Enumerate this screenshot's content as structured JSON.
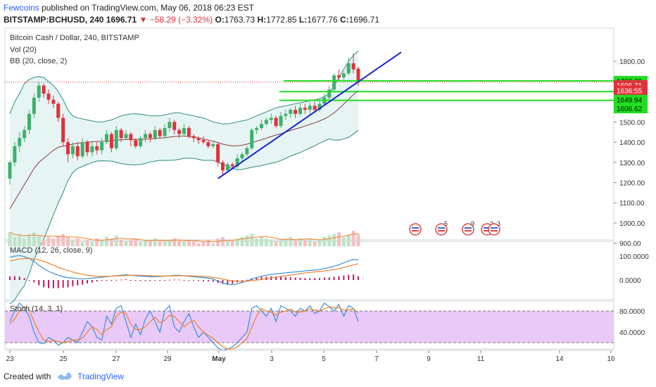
{
  "header": {
    "author": "Fewcoins",
    "published": " published on TradingView.com, May 06, 2018 06:23 EST",
    "symbol": "BITSTAMP:BCHUSD, 240",
    "price": " 1696.71 ",
    "change": "▼ −58.29 (−3.32%)",
    "ohlc_o_label": " O:",
    "ohlc_o": "1763.73",
    "ohlc_h_label": " H:",
    "ohlc_h": "1772.85",
    "ohlc_l_label": " L:",
    "ohlc_l": "1677.76",
    "ohlc_c_label": " C:",
    "ohlc_c": "1696.71"
  },
  "legend": {
    "title": "Bitcoin Cash / Dollar, 240, BITSTAMP",
    "vol": "Vol (20)",
    "bb": "BB (20, close, 2)",
    "macd": "MACD (12, 26, close, 9)",
    "stoch": "Stoch (14, 3, 1)"
  },
  "footer": {
    "created_with": "Created with",
    "brand": "TradingView"
  },
  "colors": {
    "up": "#3db16b",
    "down": "#e0323a",
    "bb_fill": "#e6f4f4",
    "bb_line": "#2e8b7e",
    "basis": "#8b3a3a",
    "trendline": "#1a22c8",
    "level": "#22dd22",
    "macd": "#3a8fd8",
    "signal": "#f0802a",
    "hist": "#c2185b",
    "stoch_k": "#3a8fd8",
    "stoch_d": "#f0802a",
    "stoch_band": "#e8c9f8"
  },
  "chart_data": [
    {
      "type": "candlestick",
      "title": "Bitcoin Cash / Dollar, 240, BITSTAMP",
      "yticks": [
        900,
        1000,
        1100,
        1200,
        1300,
        1400,
        1500,
        1600,
        1700,
        1800
      ],
      "ytick_labels": [
        "900.00",
        "1000.00",
        "1100.00",
        "1200.00",
        "1300.00",
        "1400.00",
        "1500.00",
        "1600.00",
        "1700.00",
        "1800.00"
      ],
      "xticks": [
        "23",
        "25",
        "27",
        "29",
        "May",
        "3",
        "5",
        "7",
        "9",
        "11",
        "14",
        "16"
      ],
      "ylim": [
        885,
        1870
      ],
      "candles": [
        [
          1220,
          1300,
          1190,
          1310
        ],
        [
          1300,
          1380,
          1280,
          1400
        ],
        [
          1380,
          1420,
          1350,
          1450
        ],
        [
          1420,
          1460,
          1400,
          1480
        ],
        [
          1460,
          1540,
          1440,
          1560
        ],
        [
          1540,
          1620,
          1520,
          1640
        ],
        [
          1620,
          1680,
          1600,
          1700
        ],
        [
          1680,
          1640,
          1620,
          1690
        ],
        [
          1640,
          1610,
          1590,
          1660
        ],
        [
          1610,
          1590,
          1570,
          1630
        ],
        [
          1590,
          1520,
          1500,
          1600
        ],
        [
          1520,
          1400,
          1380,
          1540
        ],
        [
          1400,
          1340,
          1300,
          1420
        ],
        [
          1340,
          1380,
          1320,
          1400
        ],
        [
          1380,
          1330,
          1310,
          1400
        ],
        [
          1330,
          1400,
          1320,
          1420
        ],
        [
          1400,
          1350,
          1330,
          1410
        ],
        [
          1350,
          1380,
          1330,
          1400
        ],
        [
          1380,
          1360,
          1340,
          1400
        ],
        [
          1360,
          1400,
          1340,
          1420
        ],
        [
          1400,
          1440,
          1390,
          1460
        ],
        [
          1440,
          1370,
          1350,
          1450
        ],
        [
          1370,
          1460,
          1360,
          1480
        ],
        [
          1460,
          1420,
          1400,
          1470
        ],
        [
          1420,
          1440,
          1410,
          1460
        ],
        [
          1440,
          1410,
          1380,
          1450
        ],
        [
          1410,
          1380,
          1370,
          1420
        ],
        [
          1380,
          1420,
          1370,
          1430
        ],
        [
          1420,
          1440,
          1400,
          1460
        ],
        [
          1440,
          1420,
          1400,
          1450
        ],
        [
          1420,
          1460,
          1410,
          1480
        ],
        [
          1460,
          1430,
          1420,
          1470
        ],
        [
          1430,
          1470,
          1420,
          1490
        ],
        [
          1470,
          1500,
          1450,
          1520
        ],
        [
          1500,
          1460,
          1440,
          1510
        ],
        [
          1460,
          1440,
          1420,
          1470
        ],
        [
          1440,
          1470,
          1430,
          1490
        ],
        [
          1470,
          1430,
          1420,
          1480
        ],
        [
          1430,
          1420,
          1400,
          1440
        ],
        [
          1420,
          1410,
          1390,
          1430
        ],
        [
          1410,
          1400,
          1390,
          1430
        ],
        [
          1400,
          1380,
          1370,
          1410
        ],
        [
          1380,
          1390,
          1370,
          1400
        ],
        [
          1390,
          1300,
          1280,
          1400
        ],
        [
          1300,
          1260,
          1240,
          1310
        ],
        [
          1260,
          1290,
          1250,
          1300
        ],
        [
          1290,
          1280,
          1270,
          1300
        ],
        [
          1280,
          1320,
          1270,
          1340
        ],
        [
          1320,
          1340,
          1300,
          1350
        ],
        [
          1340,
          1370,
          1330,
          1380
        ],
        [
          1370,
          1460,
          1360,
          1470
        ],
        [
          1460,
          1470,
          1440,
          1480
        ],
        [
          1470,
          1490,
          1460,
          1510
        ],
        [
          1490,
          1510,
          1480,
          1520
        ],
        [
          1510,
          1520,
          1490,
          1540
        ],
        [
          1520,
          1480,
          1470,
          1530
        ],
        [
          1480,
          1530,
          1470,
          1550
        ],
        [
          1530,
          1540,
          1510,
          1560
        ],
        [
          1540,
          1560,
          1520,
          1570
        ],
        [
          1560,
          1540,
          1520,
          1580
        ],
        [
          1540,
          1570,
          1530,
          1590
        ],
        [
          1570,
          1560,
          1540,
          1590
        ],
        [
          1560,
          1580,
          1540,
          1600
        ],
        [
          1580,
          1560,
          1550,
          1600
        ],
        [
          1560,
          1590,
          1550,
          1610
        ],
        [
          1590,
          1620,
          1580,
          1640
        ],
        [
          1620,
          1660,
          1610,
          1680
        ],
        [
          1660,
          1730,
          1650,
          1740
        ],
        [
          1730,
          1720,
          1700,
          1760
        ],
        [
          1720,
          1740,
          1710,
          1750
        ],
        [
          1740,
          1790,
          1730,
          1820
        ],
        [
          1790,
          1760,
          1740,
          1840
        ],
        [
          1763.73,
          1696.71,
          1677.76,
          1772.85
        ]
      ],
      "bb_upper": [
        1540,
        1600,
        1640,
        1690,
        1710,
        1720,
        1725,
        1720,
        1700,
        1680,
        1650,
        1610,
        1560,
        1530,
        1520,
        1515,
        1510,
        1505,
        1500,
        1500,
        1505,
        1510,
        1520,
        1530,
        1535,
        1540,
        1540,
        1538,
        1535,
        1530,
        1530,
        1530,
        1535,
        1540,
        1545,
        1545,
        1540,
        1535,
        1530,
        1525,
        1520,
        1510,
        1500,
        1495,
        1490,
        1490,
        1495,
        1500,
        1505,
        1510,
        1520,
        1530,
        1540,
        1550,
        1560,
        1570,
        1575,
        1580,
        1585,
        1590,
        1595,
        1600,
        1605,
        1610,
        1615,
        1625,
        1640,
        1680,
        1720,
        1760,
        1800,
        1830,
        1850
      ],
      "bb_basis": [
        1070,
        1110,
        1150,
        1190,
        1230,
        1270,
        1300,
        1320,
        1340,
        1360,
        1375,
        1380,
        1385,
        1390,
        1395,
        1398,
        1400,
        1402,
        1403,
        1404,
        1406,
        1408,
        1410,
        1412,
        1413,
        1414,
        1414,
        1414,
        1415,
        1416,
        1418,
        1420,
        1422,
        1425,
        1428,
        1430,
        1430,
        1428,
        1425,
        1420,
        1415,
        1410,
        1405,
        1398,
        1390,
        1385,
        1382,
        1382,
        1385,
        1390,
        1398,
        1405,
        1412,
        1420,
        1428,
        1435,
        1442,
        1450,
        1458,
        1465,
        1472,
        1480,
        1488,
        1496,
        1505,
        1515,
        1528,
        1545,
        1565,
        1588,
        1612,
        1635,
        1655
      ],
      "bb_lower": [
        600,
        620,
        660,
        690,
        750,
        820,
        875,
        920,
        980,
        1040,
        1100,
        1150,
        1210,
        1250,
        1270,
        1280,
        1290,
        1299,
        1306,
        1308,
        1307,
        1306,
        1300,
        1294,
        1291,
        1288,
        1288,
        1290,
        1295,
        1302,
        1306,
        1310,
        1309,
        1310,
        1311,
        1315,
        1320,
        1321,
        1320,
        1315,
        1310,
        1310,
        1310,
        1301,
        1290,
        1280,
        1269,
        1264,
        1265,
        1270,
        1276,
        1280,
        1284,
        1290,
        1296,
        1300,
        1309,
        1320,
        1331,
        1340,
        1349,
        1360,
        1371,
        1382,
        1395,
        1405,
        1416,
        1410,
        1410,
        1416,
        1424,
        1440,
        1460
      ],
      "volume": [
        90,
        60,
        70,
        50,
        80,
        90,
        70,
        40,
        60,
        50,
        70,
        80,
        60,
        40,
        50,
        30,
        40,
        30,
        50,
        40,
        60,
        50,
        70,
        40,
        30,
        40,
        50,
        30,
        40,
        30,
        50,
        40,
        30,
        40,
        50,
        40,
        30,
        40,
        30,
        20,
        30,
        40,
        20,
        50,
        60,
        30,
        40,
        50,
        60,
        70,
        80,
        50,
        60,
        50,
        40,
        30,
        40,
        50,
        60,
        40,
        50,
        40,
        50,
        30,
        40,
        60,
        70,
        80,
        90,
        60,
        70,
        100,
        80
      ],
      "levels": [
        1703.29,
        1649.94,
        1606.62
      ],
      "level_labels": [
        "1703.29",
        "1696.71",
        "1636:55",
        "1649.94",
        "1606.62"
      ],
      "trendline": [
        [
          43,
          1220
        ],
        [
          72,
          1730
        ]
      ],
      "events": [
        {
          "day": 8.3,
          "label": ""
        },
        {
          "day": 9.5,
          "label": "5"
        },
        {
          "day": 10.4,
          "label": "9"
        },
        {
          "day": 10.55,
          "label": "2"
        },
        {
          "day": 11.1,
          "label": "3"
        }
      ]
    },
    {
      "type": "line",
      "title": "MACD (12, 26, close, 9)",
      "ytick_labels": [
        "100.0000",
        "0.0000"
      ],
      "yticks": [
        100,
        0
      ],
      "ylim": [
        -60,
        130
      ],
      "macd": [
        95,
        100,
        102,
        98,
        90,
        78,
        62,
        48,
        36,
        28,
        20,
        14,
        10,
        8,
        6,
        5,
        6,
        8,
        10,
        12,
        14,
        16,
        18,
        20,
        22,
        20,
        18,
        16,
        15,
        14,
        14,
        15,
        16,
        18,
        20,
        20,
        18,
        16,
        14,
        12,
        10,
        8,
        4,
        -4,
        -12,
        -18,
        -20,
        -16,
        -10,
        -4,
        4,
        10,
        16,
        20,
        24,
        26,
        28,
        30,
        32,
        34,
        36,
        38,
        40,
        42,
        44,
        48,
        52,
        58,
        64,
        72,
        80,
        86,
        84
      ],
      "signal": [
        80,
        84,
        88,
        90,
        90,
        88,
        84,
        78,
        70,
        62,
        54,
        46,
        40,
        34,
        28,
        24,
        20,
        18,
        16,
        15,
        15,
        16,
        17,
        18,
        19,
        20,
        20,
        20,
        19,
        18,
        17,
        17,
        17,
        17,
        18,
        18,
        18,
        18,
        17,
        16,
        15,
        13,
        11,
        8,
        4,
        0,
        -4,
        -6,
        -6,
        -5,
        -3,
        0,
        3,
        6,
        9,
        12,
        15,
        18,
        21,
        24,
        27,
        30,
        32,
        34,
        36,
        38,
        41,
        44,
        48,
        53,
        58,
        63,
        68
      ],
      "histogram": [
        15,
        16,
        14,
        8,
        0,
        -10,
        -22,
        -30,
        -34,
        -34,
        -34,
        -32,
        -30,
        -26,
        -22,
        -19,
        -14,
        -10,
        -6,
        -3,
        -1,
        0,
        1,
        2,
        3,
        0,
        -2,
        -4,
        -4,
        -4,
        -3,
        -2,
        -1,
        1,
        2,
        2,
        0,
        -2,
        -3,
        -4,
        -5,
        -5,
        -7,
        -12,
        -16,
        -18,
        -16,
        -10,
        -4,
        1,
        7,
        10,
        13,
        14,
        15,
        14,
        13,
        12,
        11,
        10,
        9,
        8,
        8,
        8,
        8,
        10,
        11,
        14,
        16,
        19,
        22,
        23,
        16
      ]
    },
    {
      "type": "line",
      "title": "Stoch (14, 3, 1)",
      "ytick_labels": [
        "80.0000",
        "40.0000"
      ],
      "yticks": [
        80,
        40
      ],
      "ylim": [
        0,
        100
      ],
      "bands": [
        80,
        20
      ],
      "k": [
        60,
        80,
        95,
        85,
        70,
        40,
        20,
        18,
        30,
        25,
        15,
        20,
        30,
        25,
        20,
        40,
        60,
        50,
        30,
        25,
        70,
        55,
        85,
        90,
        60,
        30,
        55,
        35,
        65,
        80,
        60,
        40,
        80,
        90,
        50,
        40,
        60,
        75,
        50,
        30,
        40,
        30,
        20,
        10,
        5,
        8,
        12,
        20,
        30,
        40,
        85,
        90,
        80,
        70,
        85,
        60,
        90,
        85,
        80,
        70,
        85,
        80,
        90,
        75,
        80,
        95,
        88,
        80,
        92,
        70,
        90,
        85,
        60
      ],
      "d": [
        55,
        65,
        80,
        88,
        82,
        60,
        40,
        25,
        22,
        25,
        22,
        20,
        22,
        25,
        25,
        28,
        40,
        50,
        45,
        35,
        45,
        50,
        70,
        78,
        75,
        55,
        45,
        45,
        50,
        60,
        68,
        58,
        62,
        72,
        70,
        60,
        50,
        58,
        62,
        50,
        40,
        34,
        28,
        20,
        12,
        8,
        8,
        12,
        20,
        28,
        50,
        70,
        85,
        80,
        78,
        72,
        78,
        80,
        84,
        78,
        78,
        80,
        84,
        82,
        80,
        84,
        88,
        86,
        86,
        82,
        82,
        84,
        76
      ]
    }
  ]
}
